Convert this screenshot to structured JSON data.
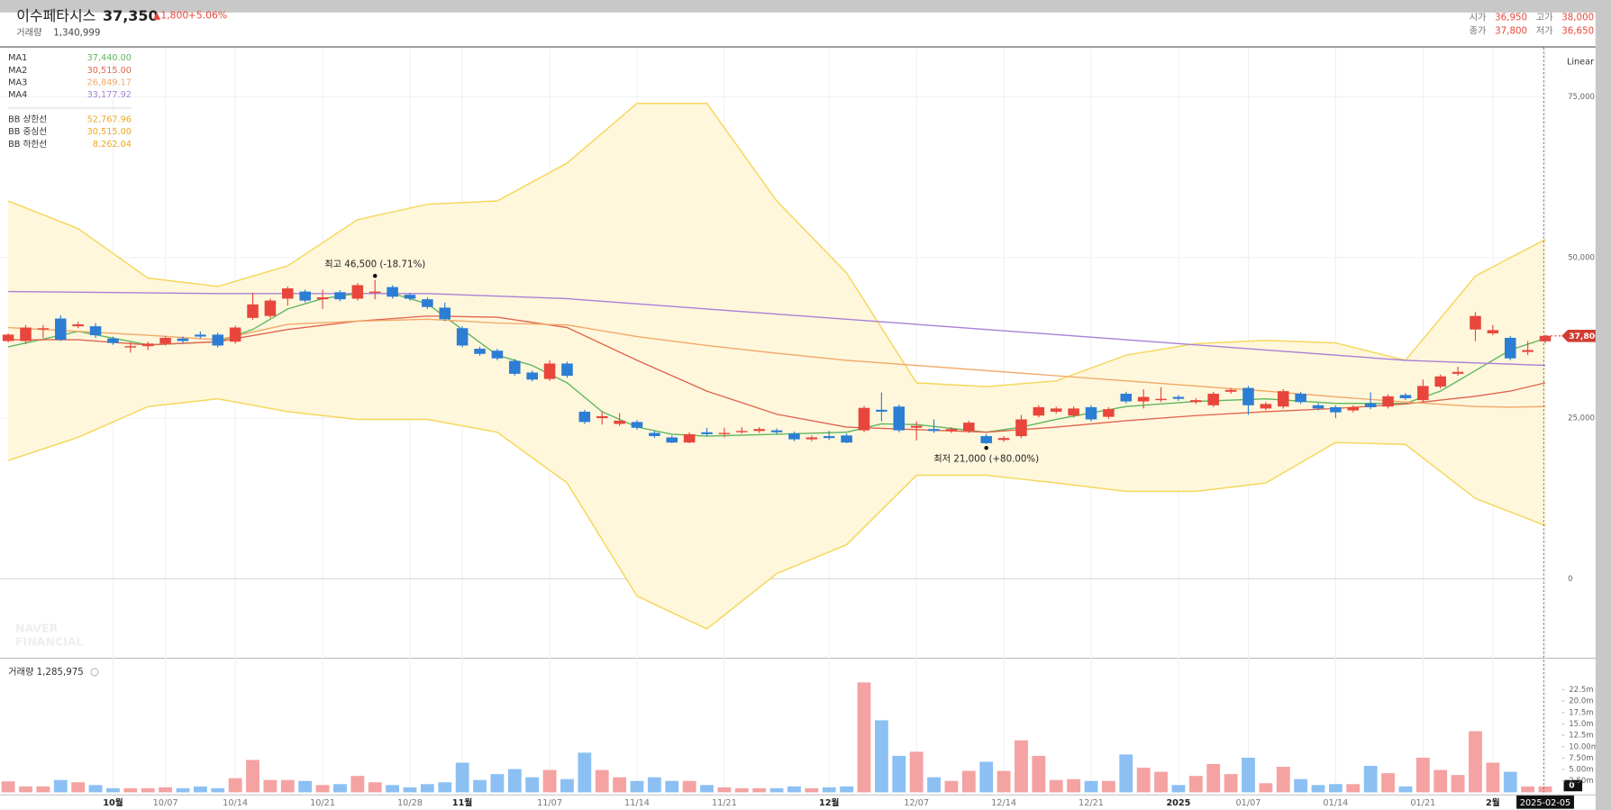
{
  "header": {
    "title": "이수페타시스",
    "price": "37,350",
    "change": "▲1,800",
    "change_pct": "+5.06%",
    "volume_label": "거래량",
    "volume": "1,340,999",
    "open_label": "시가",
    "open": "36,950",
    "high_label": "고가",
    "high": "38,000",
    "close_label": "종가",
    "close": "37,800",
    "low_label": "저가",
    "low": "36,650"
  },
  "scale_label": "Linear",
  "watermark": [
    "NAVER",
    "FINANCIAL"
  ],
  "chart_data": [
    {
      "type": "candlestick",
      "categories": [
        null,
        null,
        null,
        null,
        null,
        null,
        "10월",
        null,
        null,
        "10/07",
        null,
        null,
        null,
        "10/14",
        null,
        null,
        null,
        null,
        "10/21",
        null,
        null,
        null,
        null,
        "10/28",
        null,
        null,
        "11월",
        null,
        null,
        null,
        null,
        "11/07",
        null,
        null,
        null,
        null,
        "11/14",
        null,
        null,
        null,
        null,
        "11/21",
        null,
        null,
        null,
        null,
        null,
        "12월",
        null,
        null,
        null,
        null,
        "12/07",
        null,
        null,
        null,
        null,
        "12/14",
        null,
        null,
        null,
        null,
        "12/21",
        null,
        null,
        null,
        null,
        "2025",
        null,
        null,
        null,
        "01/07",
        null,
        null,
        null,
        null,
        "01/14",
        null,
        null,
        null,
        null,
        "01/21",
        null,
        null,
        null,
        "2월",
        null,
        null,
        "2025-02-05"
      ],
      "open": [
        37000,
        37000,
        38800,
        40500,
        39300,
        39300,
        37400,
        36000,
        36200,
        36600,
        37400,
        38000,
        38000,
        36900,
        40600,
        40900,
        43600,
        44700,
        43500,
        44600,
        43600,
        44500,
        45400,
        44200,
        43500,
        42200,
        39000,
        35800,
        35500,
        33900,
        32100,
        31100,
        33500,
        26000,
        25000,
        24100,
        24400,
        22700,
        22000,
        21200,
        22800,
        22600,
        22900,
        23000,
        23100,
        22600,
        21700,
        22200,
        22300,
        23100,
        26300,
        26800,
        23500,
        23300,
        23000,
        23000,
        22200,
        21600,
        22200,
        25400,
        26000,
        25400,
        26700,
        25200,
        28800,
        27600,
        27800,
        28300,
        27500,
        27000,
        29100,
        29700,
        26500,
        26800,
        28800,
        27000,
        26700,
        26200,
        27300,
        26800,
        28600,
        27800,
        29900,
        31900,
        38800,
        38200,
        37500,
        35300,
        36950
      ],
      "high": [
        38200,
        39500,
        39500,
        41000,
        40000,
        39800,
        37700,
        36800,
        36900,
        37800,
        37700,
        38500,
        38300,
        39400,
        44500,
        43600,
        45500,
        45000,
        45000,
        44900,
        46000,
        46500,
        45700,
        44500,
        43800,
        43000,
        39300,
        36100,
        35800,
        34200,
        32400,
        34000,
        33800,
        26300,
        26000,
        25800,
        24700,
        23000,
        22300,
        22800,
        23500,
        23500,
        23600,
        23600,
        23400,
        22900,
        22300,
        23000,
        22600,
        26900,
        29000,
        27100,
        24500,
        24800,
        23600,
        24600,
        22500,
        22200,
        25500,
        27000,
        26800,
        26800,
        27000,
        26700,
        29100,
        29500,
        29800,
        28600,
        28100,
        29100,
        29700,
        30000,
        27500,
        29500,
        29100,
        27300,
        27000,
        27000,
        29000,
        28700,
        28900,
        31000,
        31800,
        33000,
        41500,
        39500,
        37800,
        37000,
        38000
      ],
      "low": [
        36800,
        36500,
        37500,
        37000,
        39000,
        37500,
        36400,
        35200,
        35600,
        36300,
        36700,
        37400,
        36000,
        36600,
        40300,
        40600,
        42500,
        43000,
        42000,
        43200,
        43300,
        43500,
        43600,
        43300,
        42000,
        40100,
        36000,
        34700,
        34000,
        31600,
        30700,
        30800,
        31300,
        24100,
        24000,
        23800,
        23200,
        21900,
        21100,
        21100,
        22200,
        22000,
        22600,
        22700,
        22500,
        21400,
        21400,
        21600,
        21100,
        22800,
        24500,
        22800,
        21500,
        22700,
        22700,
        22700,
        21000,
        21300,
        21900,
        25100,
        25700,
        25100,
        24500,
        24900,
        27300,
        26500,
        27500,
        27700,
        27200,
        26700,
        28800,
        25500,
        26200,
        26500,
        27200,
        26200,
        25000,
        25900,
        26400,
        26500,
        27800,
        27500,
        29600,
        31600,
        37000,
        37900,
        34000,
        34800,
        36650
      ],
      "close": [
        38000,
        39100,
        39000,
        37200,
        39600,
        37900,
        36700,
        36200,
        36600,
        37500,
        37000,
        37700,
        36300,
        39100,
        42700,
        43300,
        45200,
        43300,
        43800,
        43500,
        45700,
        44700,
        43900,
        43600,
        42300,
        40400,
        36300,
        35000,
        34300,
        31900,
        31000,
        33500,
        31600,
        24400,
        25300,
        24600,
        23500,
        22200,
        21200,
        22500,
        22500,
        22700,
        23000,
        23300,
        22800,
        21700,
        22000,
        21900,
        21200,
        26600,
        26000,
        23100,
        23800,
        23000,
        23300,
        24300,
        21100,
        21900,
        24800,
        26700,
        26500,
        26500,
        24800,
        26400,
        27600,
        28300,
        28000,
        28000,
        27800,
        28800,
        29400,
        27000,
        27200,
        29200,
        27500,
        26500,
        25900,
        26700,
        26700,
        28400,
        28100,
        30000,
        31500,
        32200,
        40900,
        38700,
        34300,
        35600,
        37800
      ],
      "up_color": "#e8463c",
      "down_color": "#2c7dd4",
      "ylim": [
        -12300,
        82700
      ],
      "yticks": [
        0,
        {
          "value": 25000,
          "label": "25,000"
        },
        {
          "value": 50000,
          "label": "50,000"
        },
        {
          "value": 75000,
          "label": "75,000"
        }
      ],
      "grid": true,
      "band_fill": "#fff7dc",
      "annotations": [
        {
          "text": "최고 46,500 (-18.71%)",
          "x": 21,
          "value": 46500
        },
        {
          "text": "최저 21,000 (+80.00%)",
          "x": 56,
          "value": 21000
        }
      ],
      "overlays": [
        {
          "name": "MA1",
          "label": "37,440.00",
          "color": "#5db65d",
          "x": [
            0,
            4,
            8,
            12,
            14,
            16,
            18,
            20,
            22,
            24,
            26,
            28,
            30,
            32,
            34,
            36,
            38,
            40,
            44,
            48,
            50,
            52,
            56,
            58,
            60,
            64,
            68,
            72,
            76,
            80,
            82,
            84,
            86,
            88
          ],
          "values": [
            36100,
            38500,
            36400,
            36900,
            38800,
            42000,
            43600,
            44400,
            44400,
            42800,
            38800,
            34800,
            33200,
            30500,
            26000,
            23600,
            22500,
            22200,
            22500,
            22800,
            24100,
            24000,
            22800,
            23600,
            24800,
            26800,
            27600,
            28000,
            27300,
            27300,
            29200,
            32400,
            35600,
            37400
          ]
        },
        {
          "name": "MA2",
          "label": "30,515.00",
          "color": "#e0644e",
          "x": [
            0,
            4,
            8,
            12,
            16,
            20,
            24,
            28,
            32,
            36,
            40,
            44,
            48,
            52,
            56,
            60,
            64,
            68,
            72,
            76,
            80,
            84,
            86,
            88
          ],
          "values": [
            37200,
            37200,
            36400,
            36900,
            38800,
            40100,
            40900,
            40700,
            39100,
            34000,
            29200,
            25600,
            23600,
            23200,
            22800,
            23600,
            24600,
            25400,
            26000,
            26500,
            27200,
            28400,
            29200,
            30500
          ]
        },
        {
          "name": "MA3",
          "label": "26,849.17",
          "color": "#f2a766",
          "x": [
            0,
            4,
            8,
            12,
            16,
            20,
            24,
            28,
            32,
            36,
            40,
            44,
            48,
            52,
            56,
            60,
            64,
            68,
            72,
            76,
            80,
            84,
            86,
            88
          ],
          "values": [
            39100,
            38500,
            37900,
            37200,
            39600,
            40100,
            40400,
            39800,
            39500,
            37700,
            36300,
            35100,
            34000,
            33200,
            32400,
            31600,
            30800,
            30000,
            29200,
            28300,
            27500,
            26800,
            26700,
            26800
          ]
        },
        {
          "name": "MA4",
          "label": "33,177.92",
          "color": "#a97fd6",
          "x": [
            0,
            12,
            24,
            32,
            40,
            48,
            56,
            64,
            72,
            80,
            88
          ],
          "values": [
            44700,
            44400,
            44400,
            43600,
            42000,
            40400,
            38800,
            37200,
            35600,
            34000,
            33200
          ]
        },
        {
          "name": "BB 상한선",
          "label": "52,767.96",
          "color": "#f5d75c",
          "legend_color": "#eaa91f",
          "x": [
            0,
            4,
            8,
            12,
            16,
            20,
            24,
            28,
            32,
            36,
            40,
            44,
            48,
            52,
            56,
            60,
            64,
            68,
            72,
            76,
            80,
            84,
            86,
            88
          ],
          "values": [
            58800,
            54500,
            46800,
            45500,
            48700,
            55900,
            58300,
            58800,
            64700,
            74000,
            74000,
            58800,
            47600,
            30500,
            29900,
            30800,
            34800,
            36600,
            37100,
            36700,
            34000,
            47100,
            50000,
            52800
          ]
        },
        {
          "name": "BB 중심선",
          "label": "30,515.00",
          "color": "#eaa91f"
        },
        {
          "name": "BB 하한선",
          "label": "8,262.04",
          "color": "#f5d75c",
          "legend_color": "#eaa91f",
          "x": [
            0,
            4,
            8,
            12,
            16,
            20,
            24,
            28,
            32,
            36,
            40,
            44,
            48,
            52,
            56,
            60,
            64,
            68,
            72,
            76,
            80,
            84,
            86,
            88
          ],
          "values": [
            18400,
            22000,
            26800,
            28000,
            26000,
            24800,
            24800,
            22800,
            14900,
            -2700,
            -7800,
            800,
            5300,
            16100,
            16100,
            14900,
            13600,
            13600,
            14900,
            21200,
            20900,
            12500,
            10400,
            8300
          ]
        }
      ]
    },
    {
      "type": "bar",
      "title": "거래량 1,285,975",
      "values": [
        2400000,
        1300000,
        1300000,
        2700000,
        2200000,
        1600000,
        900000,
        900000,
        900000,
        1100000,
        900000,
        1300000,
        900000,
        3100000,
        7100000,
        2700000,
        2700000,
        2500000,
        1600000,
        1800000,
        3600000,
        2200000,
        1600000,
        1100000,
        1800000,
        2200000,
        6500000,
        2700000,
        4000000,
        5100000,
        3300000,
        4900000,
        2900000,
        8700000,
        4900000,
        3300000,
        2500000,
        3300000,
        2500000,
        2500000,
        1600000,
        1100000,
        900000,
        900000,
        900000,
        1300000,
        900000,
        1100000,
        1300000,
        24100000,
        15800000,
        8000000,
        8900000,
        3300000,
        2500000,
        4700000,
        6700000,
        4700000,
        11400000,
        8000000,
        2700000,
        2900000,
        2500000,
        2500000,
        8300000,
        5400000,
        4500000,
        1600000,
        3600000,
        6200000,
        4000000,
        7600000,
        2000000,
        5600000,
        2900000,
        1600000,
        1800000,
        1800000,
        5800000,
        4200000,
        1300000,
        7600000,
        4900000,
        3800000,
        13400000,
        6500000,
        4500000,
        1300000,
        1300000
      ],
      "up_color": "#f4a2a2",
      "down_color": "#8cc0f3",
      "ylim": [
        0,
        25000000
      ],
      "yticks": [
        0,
        {
          "value": 2500000,
          "label": "2.50m"
        },
        {
          "value": 5000000,
          "label": "5.00m"
        },
        {
          "value": 7500000,
          "label": "7.50m"
        },
        {
          "value": 10000000,
          "label": "10.00m"
        },
        {
          "value": 12500000,
          "label": "12.5m"
        },
        {
          "value": 15000000,
          "label": "15.0m"
        },
        {
          "value": 17500000,
          "label": "17.5m"
        },
        {
          "value": 20000000,
          "label": "20.0m"
        },
        {
          "value": 22500000,
          "label": "22.5m"
        }
      ]
    }
  ]
}
